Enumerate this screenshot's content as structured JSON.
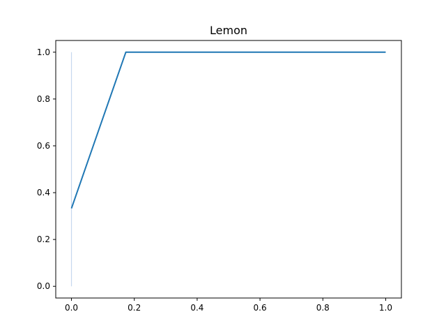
{
  "chart_data": {
    "type": "line",
    "title": "Lemon",
    "xlabel": "",
    "ylabel": "",
    "xlim": [
      -0.05,
      1.05
    ],
    "ylim": [
      -0.05,
      1.05
    ],
    "x_ticks": [
      0.0,
      0.2,
      0.4,
      0.6,
      0.8,
      1.0
    ],
    "y_ticks": [
      0.0,
      0.2,
      0.4,
      0.6,
      0.8,
      1.0
    ],
    "x_tick_labels": [
      "0.0",
      "0.2",
      "0.4",
      "0.6",
      "0.8",
      "1.0"
    ],
    "y_tick_labels": [
      "0.0",
      "0.2",
      "0.4",
      "0.6",
      "0.8",
      "1.0"
    ],
    "grid": false,
    "series": [
      {
        "x": [
          0.0,
          0.173,
          1.0
        ],
        "y": [
          0.333,
          1.0,
          1.0
        ],
        "color": "#1f77b4"
      }
    ],
    "vertical_band": {
      "x": 0.0,
      "y": [
        0.0,
        1.0
      ],
      "color": "#aec7e8"
    }
  }
}
